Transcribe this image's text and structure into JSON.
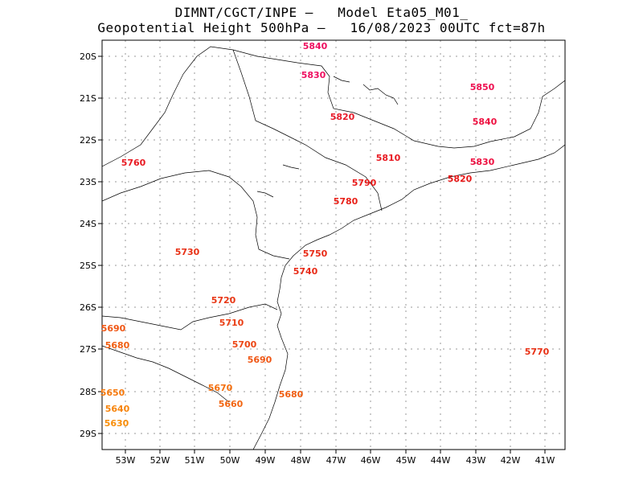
{
  "title_line1": "DIMNT/CGCT/INPE –   Model Eta05_M01_",
  "title_line2": "Geopotential Height 500hPa –   16/08/2023 00UTC fct=87h",
  "lat_ticks": [
    "20S",
    "21S",
    "22S",
    "23S",
    "24S",
    "25S",
    "26S",
    "27S",
    "28S",
    "29S"
  ],
  "lon_ticks": [
    "53W",
    "52W",
    "51W",
    "50W",
    "49W",
    "48W",
    "47W",
    "46W",
    "45W",
    "44W",
    "43W",
    "42W",
    "41W"
  ],
  "contour_labels": [
    "5840",
    "5830",
    "5850",
    "5820",
    "5840",
    "5810",
    "5830",
    "5760",
    "5790",
    "5820",
    "5780",
    "5730",
    "5750",
    "5740",
    "5720",
    "5710",
    "5690",
    "5700",
    "5680",
    "5690",
    "5770",
    "5670",
    "5650",
    "5660",
    "5680",
    "5640",
    "5630"
  ]
}
